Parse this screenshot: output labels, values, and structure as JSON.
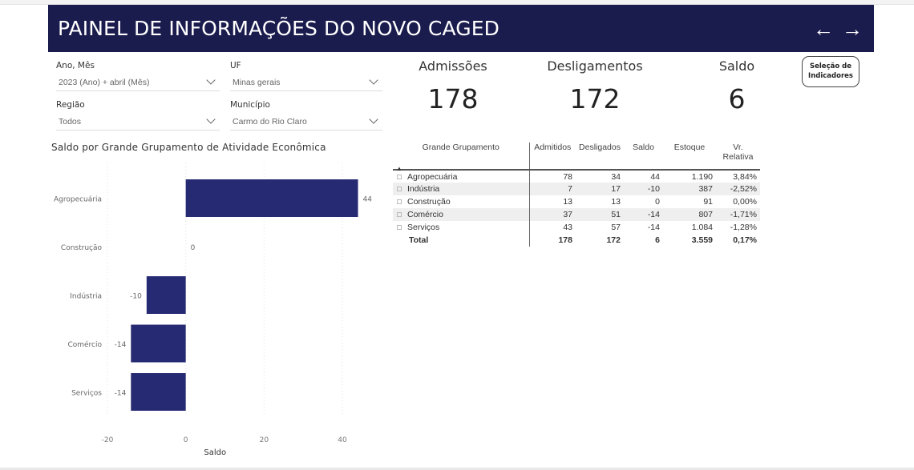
{
  "header": {
    "title": "PAINEL DE INFORMAÇÕES DO NOVO CAGED"
  },
  "filters": [
    {
      "label": "Ano, Mês",
      "value": "2023 (Ano) + abril (Mês)"
    },
    {
      "label": "UF",
      "value": "Minas gerais"
    },
    {
      "label": "Região",
      "value": "Todos"
    },
    {
      "label": "Município",
      "value": "Carmo do Rio Claro"
    }
  ],
  "kpis": [
    {
      "label": "Admissões",
      "value": "178"
    },
    {
      "label": "Desligamentos",
      "value": "172"
    },
    {
      "label": "Saldo",
      "value": "6"
    }
  ],
  "selection_button": {
    "line1": "Seleção de",
    "line2": "Indicadores"
  },
  "chart_data": {
    "type": "bar",
    "orientation": "horizontal",
    "title": "Saldo por Grande Grupamento de Atividade Econômica",
    "categories": [
      "Agropecuária",
      "Construção",
      "Indústria",
      "Comércio",
      "Serviços"
    ],
    "values": [
      44,
      0,
      -10,
      -14,
      -14
    ],
    "xlabel": "Saldo",
    "xlim": [
      -20,
      40
    ],
    "xticks": [
      -20,
      0,
      20,
      40
    ],
    "grid": true,
    "bar_color": "#262a72"
  },
  "table": {
    "columns": [
      "Grande Grupamento",
      "Admitidos",
      "Desligados",
      "Saldo",
      "Estoque",
      "Vr. Relativa"
    ],
    "rows": [
      [
        "Agropecuária",
        "78",
        "34",
        "44",
        "1.190",
        "3,84%"
      ],
      [
        "Indústria",
        "7",
        "17",
        "-10",
        "387",
        "-2,52%"
      ],
      [
        "Construção",
        "13",
        "13",
        "0",
        "91",
        "0,00%"
      ],
      [
        "Comércio",
        "37",
        "51",
        "-14",
        "807",
        "-1,71%"
      ],
      [
        "Serviços",
        "43",
        "57",
        "-14",
        "1.084",
        "-1,28%"
      ]
    ],
    "total": [
      "Total",
      "178",
      "172",
      "6",
      "3.559",
      "0,17%"
    ]
  }
}
